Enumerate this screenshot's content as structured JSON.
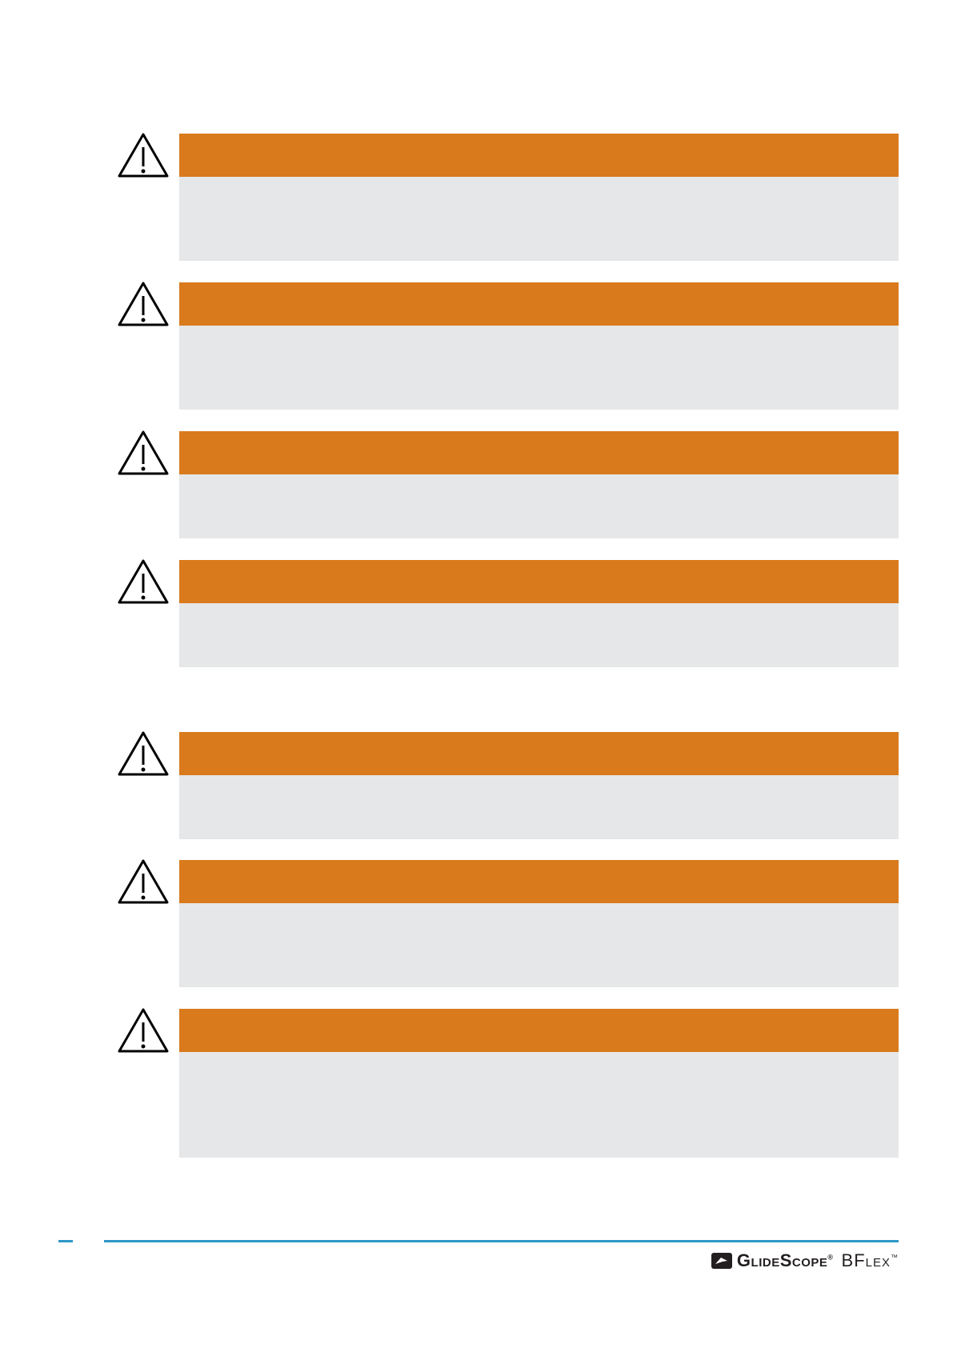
{
  "footer": {
    "brand": "GlideScope",
    "brand_mark": "®",
    "product": "BFlex",
    "product_mark": "™"
  }
}
